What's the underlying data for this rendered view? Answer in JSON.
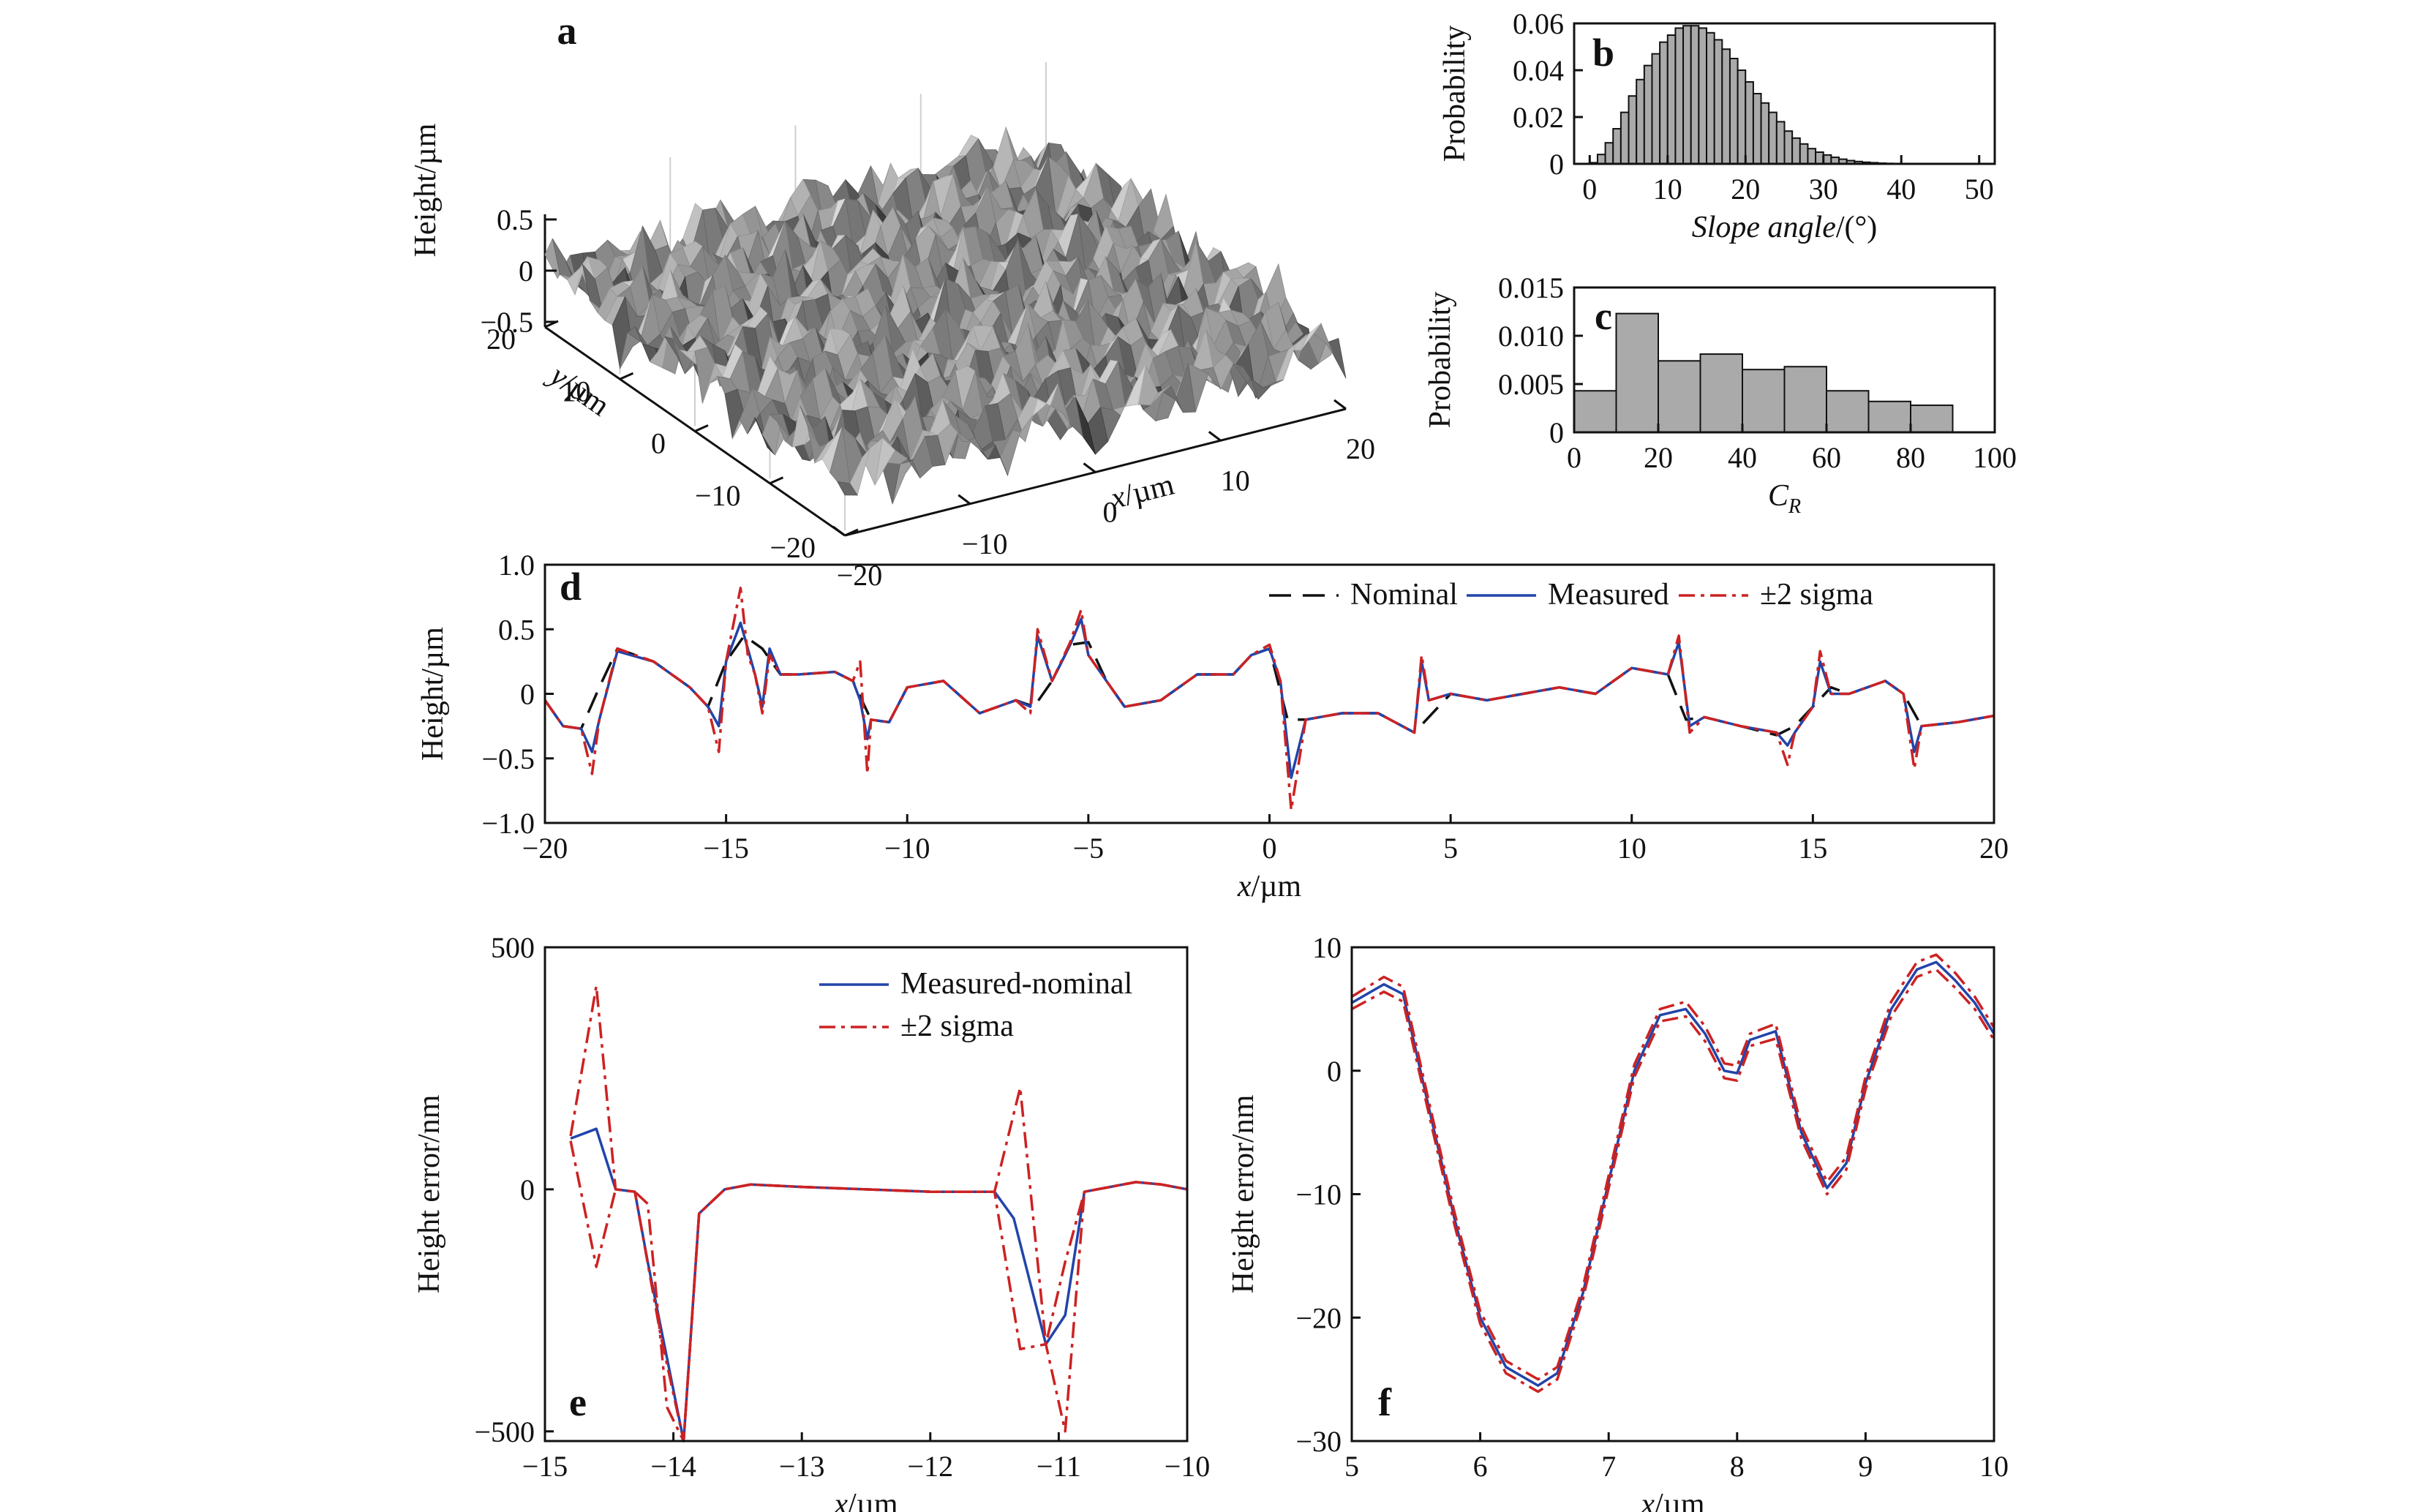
{
  "chart_data": [
    {
      "panel": "a",
      "type": "surface",
      "zlabel": "Height/µm",
      "xlabel": "x/µm",
      "ylabel": "y/µm",
      "zticks": [
        "0.5",
        "0",
        "−0.5"
      ],
      "xticks": [
        "−20",
        "−10",
        "0",
        "10",
        "20"
      ],
      "yticks": [
        "20",
        "10",
        "0",
        "−10",
        "−20"
      ],
      "xlim": [
        -20,
        20
      ],
      "ylim": [
        -20,
        20
      ],
      "zlim": [
        -0.5,
        0.5
      ],
      "surface_color": "#8a8a8a"
    },
    {
      "panel": "b",
      "type": "bar",
      "xlabel": "Slope angle/(°)",
      "ylabel": "Probability",
      "xlim": [
        -2,
        52
      ],
      "ylim": [
        0,
        0.06
      ],
      "xticks": [
        "0",
        "10",
        "20",
        "30",
        "40",
        "50"
      ],
      "yticks": [
        "0",
        "0.02",
        "0.04",
        "0.06"
      ],
      "bin_width": 1,
      "x": [
        0,
        1,
        2,
        3,
        4,
        5,
        6,
        7,
        8,
        9,
        10,
        11,
        12,
        13,
        14,
        15,
        16,
        17,
        18,
        19,
        20,
        21,
        22,
        23,
        24,
        25,
        26,
        27,
        28,
        29,
        30,
        31,
        32,
        33,
        34,
        35,
        36,
        37,
        38,
        39
      ],
      "values": [
        0.0005,
        0.004,
        0.009,
        0.015,
        0.022,
        0.029,
        0.036,
        0.042,
        0.047,
        0.052,
        0.055,
        0.058,
        0.059,
        0.059,
        0.058,
        0.056,
        0.053,
        0.049,
        0.045,
        0.04,
        0.035,
        0.03,
        0.026,
        0.022,
        0.018,
        0.014,
        0.011,
        0.0085,
        0.0065,
        0.005,
        0.0038,
        0.0028,
        0.002,
        0.0014,
        0.001,
        0.0007,
        0.0005,
        0.0003,
        0.0002,
        0.0001
      ],
      "bar_color": "#aaaaaa"
    },
    {
      "panel": "c",
      "type": "bar",
      "xlabel": "C",
      "xlabel_sub": "R",
      "ylabel": "Probability",
      "xlim": [
        0,
        100
      ],
      "ylim": [
        0,
        0.015
      ],
      "xticks": [
        "0",
        "20",
        "40",
        "60",
        "80",
        "100"
      ],
      "yticks": [
        "0",
        "0.005",
        "0.010",
        "0.015"
      ],
      "bin_width": 10,
      "x": [
        10,
        20,
        30,
        40,
        50,
        60,
        70,
        80,
        90
      ],
      "values": [
        0.0043,
        0.0123,
        0.0074,
        0.0081,
        0.0065,
        0.0068,
        0.0043,
        0.0032,
        0.0028
      ],
      "bar_color": "#aaaaaa"
    },
    {
      "panel": "d",
      "type": "line",
      "xlabel": "x/µm",
      "ylabel": "Height/µm",
      "xlim": [
        -20,
        20
      ],
      "ylim": [
        -1.0,
        1.0
      ],
      "xticks": [
        "−20",
        "−15",
        "−10",
        "−5",
        "0",
        "5",
        "10",
        "15",
        "20"
      ],
      "yticks": [
        "1.0",
        "0.5",
        "0",
        "−0.5",
        "−1.0"
      ],
      "series": [
        {
          "name": "Nominal",
          "color": "#111111",
          "dash": "dashed",
          "x": [
            -20,
            -19.5,
            -19,
            -18.5,
            -18,
            -17,
            -16,
            -15.5,
            -15,
            -14.5,
            -14,
            -13.5,
            -13,
            -12,
            -11.5,
            -11,
            -10.5,
            -10,
            -9,
            -8,
            -7,
            -6.5,
            -6,
            -5.5,
            -5,
            -4.5,
            -4,
            -3,
            -2,
            -1,
            -0.5,
            0,
            0.5,
            1,
            2,
            3,
            4,
            5,
            6,
            7,
            8,
            9,
            10,
            11,
            11.5,
            12,
            13,
            14,
            14.5,
            15,
            15.5,
            16,
            17,
            17.5,
            18,
            19,
            20
          ],
          "y": [
            -0.05,
            -0.25,
            -0.27,
            0.05,
            0.35,
            0.25,
            0.05,
            -0.1,
            0.25,
            0.45,
            0.35,
            0.15,
            0.15,
            0.17,
            0.1,
            -0.2,
            -0.22,
            0.05,
            0.1,
            -0.15,
            -0.05,
            -0.1,
            0.1,
            0.38,
            0.4,
            0.1,
            -0.1,
            -0.05,
            0.15,
            0.15,
            0.3,
            0.35,
            -0.2,
            -0.2,
            -0.15,
            -0.15,
            -0.3,
            0.0,
            -0.05,
            0.0,
            0.05,
            0.0,
            0.2,
            0.15,
            -0.2,
            -0.18,
            -0.25,
            -0.32,
            -0.25,
            -0.1,
            0.05,
            0.0,
            0.1,
            0.0,
            -0.25,
            -0.22,
            -0.17
          ]
        },
        {
          "name": "Measured",
          "color": "#2244aa",
          "dash": "solid",
          "x": [
            -20,
            -19.5,
            -19,
            -18.7,
            -18.5,
            -18,
            -17,
            -16,
            -15.5,
            -15.2,
            -15,
            -14.6,
            -14.4,
            -14.2,
            -14,
            -13.8,
            -13.5,
            -13,
            -12,
            -11.5,
            -11.3,
            -11.1,
            -11,
            -10.5,
            -10,
            -9,
            -8,
            -7,
            -6.6,
            -6.4,
            -6,
            -5.5,
            -5.2,
            -5,
            -4.5,
            -4,
            -3,
            -2,
            -1,
            -0.5,
            0,
            0.3,
            0.6,
            1,
            2,
            3,
            4,
            4.2,
            4.4,
            5,
            6,
            7,
            8,
            9,
            10,
            11,
            11.3,
            11.6,
            12,
            13,
            14,
            14.3,
            14.5,
            15,
            15.2,
            15.5,
            16,
            17,
            17.5,
            17.8,
            18,
            19,
            20
          ],
          "y": [
            -0.05,
            -0.25,
            -0.27,
            -0.45,
            -0.2,
            0.33,
            0.25,
            0.05,
            -0.1,
            -0.25,
            0.25,
            0.55,
            0.35,
            0.15,
            -0.1,
            0.35,
            0.15,
            0.15,
            0.17,
            0.1,
            -0.05,
            -0.35,
            -0.2,
            -0.22,
            0.05,
            0.1,
            -0.15,
            -0.05,
            -0.1,
            0.45,
            0.1,
            0.38,
            0.58,
            0.3,
            0.1,
            -0.1,
            -0.05,
            0.15,
            0.15,
            0.3,
            0.35,
            0.1,
            -0.65,
            -0.2,
            -0.15,
            -0.15,
            -0.3,
            0.25,
            -0.05,
            0.0,
            -0.05,
            0.0,
            0.05,
            0.0,
            0.2,
            0.15,
            0.4,
            -0.25,
            -0.18,
            -0.25,
            -0.3,
            -0.4,
            -0.3,
            -0.1,
            0.25,
            0.0,
            0.0,
            0.1,
            0.0,
            -0.45,
            -0.25,
            -0.22,
            -0.17
          ]
        },
        {
          "name": "±2 sigma",
          "color": "#cc2222",
          "dash": "dashdot",
          "x": [
            -20,
            -19.5,
            -19,
            -18.7,
            -18.5,
            -18,
            -17,
            -16,
            -15.5,
            -15.2,
            -15,
            -14.6,
            -14.4,
            -14.2,
            -14,
            -13.8,
            -13.5,
            -13,
            -12,
            -11.5,
            -11.3,
            -11.1,
            -11,
            -10.5,
            -10,
            -9,
            -8,
            -7,
            -6.6,
            -6.4,
            -6,
            -5.5,
            -5.2,
            -5,
            -4.5,
            -4,
            -3,
            -2,
            -1,
            -0.5,
            0,
            0.3,
            0.6,
            1,
            2,
            3,
            4,
            4.2,
            4.4,
            5,
            6,
            7,
            8,
            9,
            10,
            11,
            11.3,
            11.6,
            12,
            13,
            14,
            14.3,
            14.5,
            15,
            15.2,
            15.5,
            16,
            17,
            17.5,
            17.8,
            18,
            19,
            20
          ],
          "y": [
            -0.05,
            -0.25,
            -0.27,
            -0.62,
            -0.2,
            0.35,
            0.25,
            0.05,
            -0.1,
            -0.45,
            0.25,
            0.82,
            0.3,
            0.15,
            -0.15,
            0.3,
            0.15,
            0.15,
            0.17,
            0.1,
            0.25,
            -0.62,
            -0.2,
            -0.22,
            0.05,
            0.1,
            -0.15,
            -0.05,
            -0.15,
            0.5,
            0.1,
            0.4,
            0.65,
            0.3,
            0.1,
            -0.1,
            -0.05,
            0.15,
            0.15,
            0.3,
            0.38,
            0.1,
            -0.9,
            -0.2,
            -0.15,
            -0.15,
            -0.3,
            0.3,
            -0.05,
            0.0,
            -0.05,
            0.0,
            0.05,
            0.0,
            0.2,
            0.15,
            0.45,
            -0.3,
            -0.18,
            -0.25,
            -0.3,
            -0.55,
            -0.3,
            -0.1,
            0.33,
            0.0,
            0.0,
            0.1,
            0.0,
            -0.58,
            -0.25,
            -0.22,
            -0.17
          ]
        }
      ]
    },
    {
      "panel": "e",
      "type": "line",
      "xlabel": "x/µm",
      "ylabel": "Height error/nm",
      "xlim": [
        -15,
        -10
      ],
      "ylim": [
        -520,
        500
      ],
      "xticks": [
        "−15",
        "−14",
        "−13",
        "−12",
        "−11",
        "−10"
      ],
      "yticks": [
        "500",
        "0",
        "−500"
      ],
      "series": [
        {
          "name": "Measured-nominal",
          "color": "#2244aa",
          "dash": "solid",
          "x": [
            -14.8,
            -14.6,
            -14.45,
            -14.3,
            -14.2,
            -13.92,
            -13.8,
            -13.6,
            -13.4,
            -13,
            -12,
            -11.5,
            -11.35,
            -11.1,
            -10.95,
            -10.8,
            -10.6,
            -10.4,
            -10.2,
            -10
          ],
          "y": [
            105,
            125,
            0,
            -5,
            -150,
            -520,
            -50,
            0,
            10,
            5,
            -5,
            -5,
            -60,
            -320,
            -260,
            -5,
            5,
            15,
            10,
            0
          ]
        },
        {
          "name": "±2 sigma",
          "color": "#cc2222",
          "dash": "dashdot",
          "x": [
            -14.8,
            -14.6,
            -14.45,
            -14.3,
            -14.2,
            -14.05,
            -13.92,
            -13.8,
            -13.6,
            -13.4,
            -13,
            -12,
            -11.5,
            -11.3,
            -11.1,
            -10.95,
            -10.8,
            -10.6,
            -10.4,
            -10.2,
            -10
          ],
          "y": [
            110,
            420,
            0,
            -5,
            -30,
            -450,
            -520,
            -50,
            0,
            10,
            5,
            -5,
            -5,
            210,
            -320,
            -150,
            -5,
            5,
            15,
            10,
            0
          ]
        },
        {
          "name": "",
          "color": "#cc2222",
          "dash": "dashdot",
          "x": [
            -14.8,
            -14.6,
            -14.45,
            -14.3,
            -14.1,
            -13.92,
            -13.8,
            -13.6,
            -13.4,
            -13,
            -12,
            -11.5,
            -11.3,
            -11.1,
            -10.95,
            -10.8,
            -10.6,
            -10.4,
            -10.2,
            -10
          ],
          "y": [
            100,
            -160,
            0,
            -5,
            -300,
            -520,
            -50,
            0,
            10,
            5,
            -5,
            -5,
            -330,
            -320,
            -500,
            -5,
            5,
            15,
            10,
            0
          ]
        }
      ]
    },
    {
      "panel": "f",
      "type": "line",
      "xlabel": "x/µm",
      "ylabel": "Height error/nm",
      "xlim": [
        5,
        10
      ],
      "ylim": [
        -30,
        10
      ],
      "xticks": [
        "5",
        "6",
        "7",
        "8",
        "9",
        "10"
      ],
      "yticks": [
        "10",
        "0",
        "−10",
        "−20",
        "−30"
      ],
      "series": [
        {
          "name": "Measured-nominal",
          "color": "#2244aa",
          "dash": "solid",
          "x": [
            5,
            5.25,
            5.4,
            5.6,
            5.8,
            6,
            6.2,
            6.45,
            6.6,
            6.8,
            7,
            7.2,
            7.4,
            7.6,
            7.75,
            7.9,
            8,
            8.1,
            8.3,
            8.5,
            8.7,
            8.85,
            9,
            9.2,
            9.4,
            9.55,
            9.7,
            9.85,
            10
          ],
          "y": [
            5.5,
            7,
            6.2,
            -3,
            -12,
            -20,
            -24,
            -25.5,
            -24.5,
            -18,
            -9,
            0,
            4.5,
            5,
            3,
            0,
            -0.2,
            2.5,
            3.2,
            -5,
            -9.5,
            -7.5,
            -1,
            5,
            8.2,
            8.8,
            7.3,
            5.5,
            3
          ]
        },
        {
          "name": "±2 sigma",
          "color": "#cc2222",
          "dash": "dashdot",
          "x": [
            5,
            5.25,
            5.4,
            5.6,
            5.8,
            6,
            6.2,
            6.45,
            6.6,
            6.8,
            7,
            7.2,
            7.4,
            7.6,
            7.75,
            7.9,
            8,
            8.1,
            8.3,
            8.5,
            8.7,
            8.85,
            9,
            9.2,
            9.4,
            9.55,
            9.7,
            9.85,
            10
          ],
          "y": [
            6,
            7.6,
            6.8,
            -2.5,
            -11.5,
            -19.5,
            -23.5,
            -25,
            -24,
            -17.5,
            -8.5,
            0.5,
            5,
            5.6,
            3.6,
            0.6,
            0.4,
            3,
            3.8,
            -4.5,
            -9,
            -7,
            -0.5,
            5.6,
            8.8,
            9.4,
            7.9,
            6,
            3.5
          ]
        },
        {
          "name": "",
          "color": "#cc2222",
          "dash": "dashdot",
          "x": [
            5,
            5.25,
            5.4,
            5.6,
            5.8,
            6,
            6.2,
            6.45,
            6.6,
            6.8,
            7,
            7.2,
            7.4,
            7.6,
            7.75,
            7.9,
            8,
            8.1,
            8.3,
            8.5,
            8.7,
            8.85,
            9,
            9.2,
            9.4,
            9.55,
            9.7,
            9.85,
            10
          ],
          "y": [
            5,
            6.4,
            5.6,
            -3.5,
            -12.5,
            -20.5,
            -24.5,
            -26,
            -25,
            -18.5,
            -9.5,
            -0.5,
            4,
            4.4,
            2.4,
            -0.6,
            -0.8,
            2,
            2.6,
            -5.5,
            -10,
            -8,
            -1.5,
            4.4,
            7.6,
            8.2,
            6.7,
            5,
            2.5
          ]
        }
      ]
    }
  ]
}
